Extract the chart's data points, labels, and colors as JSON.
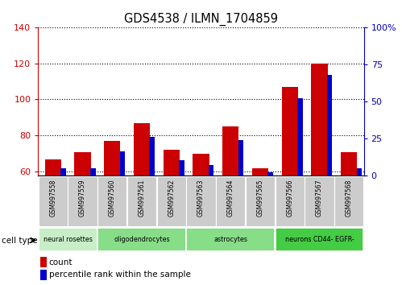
{
  "title": "GDS4538 / ILMN_1704859",
  "samples": [
    "GSM997558",
    "GSM997559",
    "GSM997560",
    "GSM997561",
    "GSM997562",
    "GSM997563",
    "GSM997564",
    "GSM997565",
    "GSM997566",
    "GSM997567",
    "GSM997568"
  ],
  "count_values": [
    67,
    71,
    77,
    87,
    72,
    70,
    85,
    62,
    107,
    120,
    71
  ],
  "percentile_values": [
    5,
    5,
    16,
    26,
    10,
    7,
    24,
    2,
    52,
    68,
    5
  ],
  "ylim_left": [
    58,
    140
  ],
  "ylim_right": [
    0,
    100
  ],
  "yticks_left": [
    60,
    80,
    100,
    120,
    140
  ],
  "yticks_right": [
    0,
    25,
    50,
    75,
    100
  ],
  "ytick_labels_right": [
    "0",
    "25",
    "50",
    "75",
    "100%"
  ],
  "bar_color_red": "#cc0000",
  "bar_color_blue": "#0000cc",
  "left_axis_color": "#cc0000",
  "right_axis_color": "#0000bb",
  "cell_type_label": "cell type",
  "legend_count": "count",
  "legend_percentile": "percentile rank within the sample",
  "cell_groups": [
    {
      "label": "neural rosettes",
      "indices": [
        0,
        1
      ],
      "color": "#c8eec8"
    },
    {
      "label": "oligodendrocytes",
      "indices": [
        2,
        3,
        4
      ],
      "color": "#88dd88"
    },
    {
      "label": "astrocytes",
      "indices": [
        5,
        6,
        7
      ],
      "color": "#88dd88"
    },
    {
      "label": "neurons CD44- EGFR-",
      "indices": [
        8,
        9,
        10
      ],
      "color": "#44cc44"
    }
  ],
  "red_bar_width": 0.55,
  "blue_bar_width": 0.18
}
